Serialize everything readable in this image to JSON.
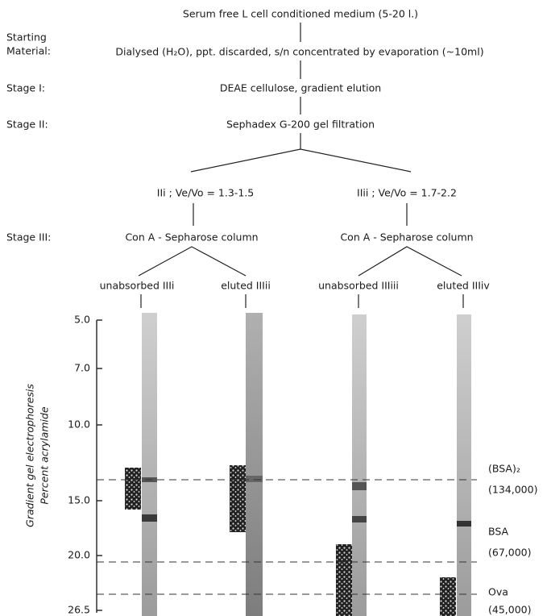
{
  "header": {
    "source": "Serum free L cell conditioned medium (5-20 l.)"
  },
  "stages": [
    {
      "label": [
        "Starting",
        "Material:"
      ],
      "step": "Dialysed (H₂O), ppt. discarded, s/n concentrated by evaporation (~10ml)"
    },
    {
      "label": [
        "Stage I:"
      ],
      "step": "DEAE cellulose, gradient elution"
    },
    {
      "label": [
        "Stage II:"
      ],
      "step": "Sephadex G-200 gel filtration"
    },
    {
      "label": [
        "Stage III:"
      ],
      "step": "Con A - Sepharose column"
    }
  ],
  "fractions": [
    "IIi ; Ve/Vo = 1.3-1.5",
    "IIii ; Ve/Vo = 1.7-2.2"
  ],
  "column_steps": [
    "Con A - Sepharose column",
    "Con A - Sepharose column"
  ],
  "lanes": [
    "unabsorbed IIIi",
    "eluted IIIii",
    "unabsorbed IIIiii",
    "eluted IIIiv"
  ],
  "axis": {
    "title": [
      "Gradient gel electrophoresis",
      "Percent acrylamide"
    ],
    "ticks": [
      "5.0",
      "7.0",
      "10.0",
      "15.0",
      "20.0",
      "26.5"
    ]
  },
  "markers": [
    {
      "name": "(BSA)₂",
      "mw": "(134,000)"
    },
    {
      "name": "BSA",
      "mw": "(67,000)"
    },
    {
      "name": "Ova",
      "mw": "(45,000)"
    }
  ]
}
